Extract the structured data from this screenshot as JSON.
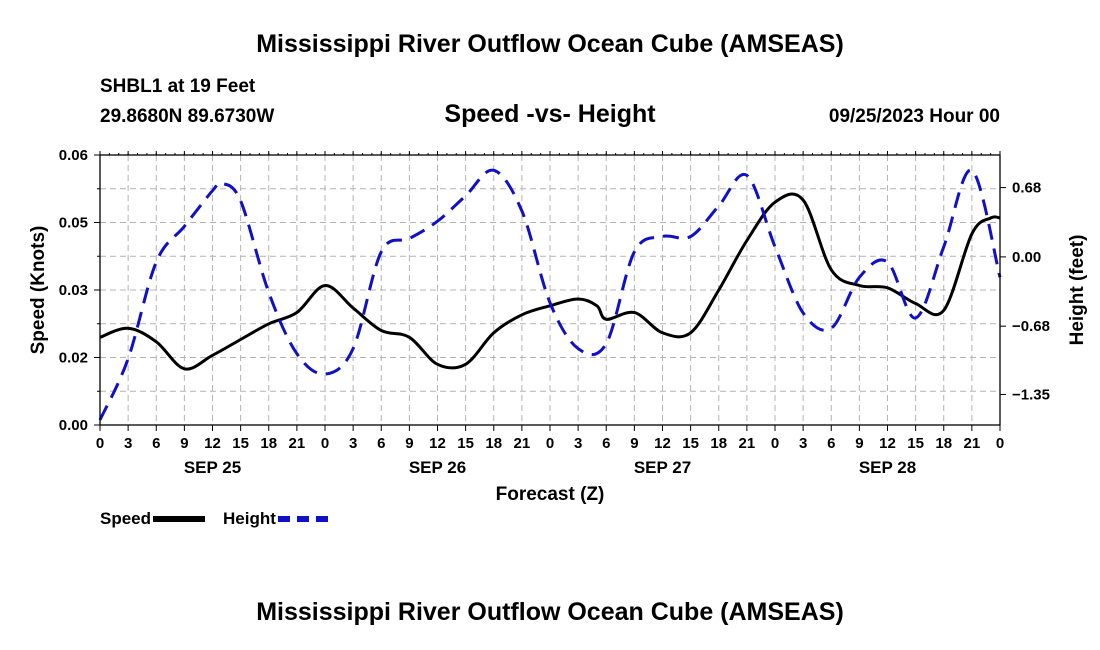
{
  "header": {
    "main_title": "Mississippi River Outflow Ocean Cube (AMSEAS)",
    "station": "SHBL1 at 19 Feet",
    "coordinates": "29.8680N  89.6730W",
    "plot_title": "Speed -vs- Height",
    "run_time": "09/25/2023 Hour 00"
  },
  "footer": {
    "title": "Mississippi River Outflow Ocean Cube (AMSEAS)"
  },
  "legend": {
    "speed_label": "Speed",
    "height_label": "Height"
  },
  "chart_data": {
    "type": "line",
    "title": "Speed -vs- Height",
    "xlabel": "Forecast (Z)",
    "ylabel": "Speed (Knots)",
    "y2label": "Height (feet)",
    "xlim": [
      0,
      96
    ],
    "ylim": [
      0,
      0.06
    ],
    "y2lim": [
      -1.65,
      1.0
    ],
    "grid": true,
    "x_tick_labels": [
      "0",
      "3",
      "6",
      "9",
      "12",
      "15",
      "18",
      "21",
      "0",
      "3",
      "6",
      "9",
      "12",
      "15",
      "18",
      "21",
      "0",
      "3",
      "6",
      "9",
      "12",
      "15",
      "18",
      "21",
      "0",
      "3",
      "6",
      "9",
      "12",
      "15",
      "18",
      "21",
      "0"
    ],
    "day_labels": [
      {
        "label": "SEP 25",
        "hour": 12
      },
      {
        "label": "SEP 26",
        "hour": 36
      },
      {
        "label": "SEP 27",
        "hour": 60
      },
      {
        "label": "SEP 28",
        "hour": 84
      }
    ],
    "y_tick_labels": [
      "0.00",
      "0.02",
      "0.03",
      "0.05",
      "0.06"
    ],
    "y_ticks": [
      0,
      0.015,
      0.03,
      0.045,
      0.06
    ],
    "y2_tick_labels": [
      "0.68",
      "0.00",
      "−0.68",
      "−1.35"
    ],
    "y2_ticks": [
      0.68,
      0,
      -0.68,
      -1.35
    ],
    "series": [
      {
        "name": "Speed",
        "axis": "left",
        "color": "#000000",
        "style": "solid",
        "x": [
          0,
          3,
          6,
          9,
          12,
          15,
          18,
          21,
          24,
          27,
          30,
          33,
          36,
          39,
          42,
          45,
          48,
          51,
          53,
          54,
          57,
          60,
          63,
          66,
          69,
          72,
          75,
          78,
          81,
          84,
          87,
          90,
          93,
          95,
          96
        ],
        "y": [
          0.0195,
          0.0215,
          0.0185,
          0.0125,
          0.0155,
          0.019,
          0.0225,
          0.025,
          0.031,
          0.026,
          0.021,
          0.0195,
          0.0135,
          0.0135,
          0.0205,
          0.0245,
          0.0265,
          0.028,
          0.0265,
          0.0235,
          0.025,
          0.0205,
          0.0205,
          0.03,
          0.041,
          0.0495,
          0.05,
          0.0345,
          0.031,
          0.0305,
          0.027,
          0.0255,
          0.0425,
          0.046,
          0.046
        ]
      },
      {
        "name": "Height",
        "axis": "right",
        "color": "#1010c8",
        "style": "dashed",
        "x": [
          0,
          3,
          6,
          9,
          12,
          13,
          15,
          18,
          21,
          24,
          27,
          30,
          33,
          36,
          39,
          42,
          45,
          48,
          51,
          54,
          57,
          60,
          63,
          66,
          69,
          72,
          75,
          78,
          81,
          84,
          87,
          90,
          93,
          96
        ],
        "y": [
          -1.6,
          -1.0,
          -0.05,
          0.3,
          0.65,
          0.72,
          0.55,
          -0.35,
          -0.95,
          -1.15,
          -0.9,
          0.05,
          0.18,
          0.35,
          0.6,
          0.85,
          0.45,
          -0.45,
          -0.9,
          -0.85,
          0.05,
          0.2,
          0.2,
          0.5,
          0.8,
          0.1,
          -0.55,
          -0.7,
          -0.2,
          -0.05,
          -0.6,
          0.1,
          0.85,
          -0.2
        ]
      }
    ]
  }
}
